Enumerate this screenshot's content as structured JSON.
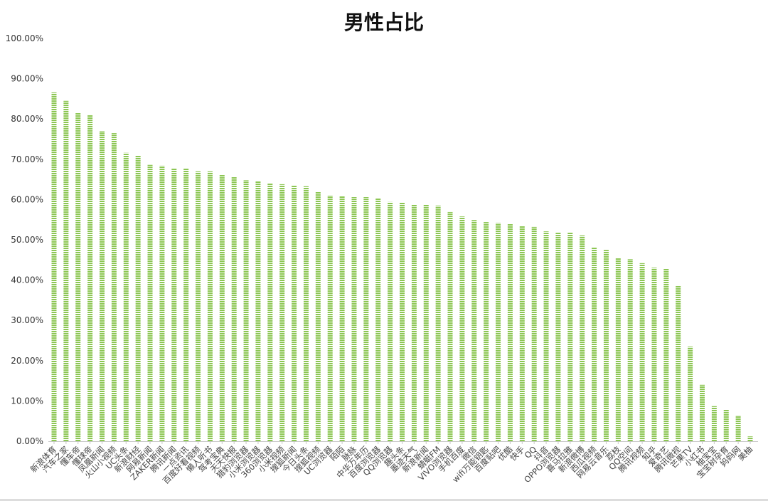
{
  "chart_data": {
    "type": "bar",
    "title": "男性占比",
    "xlabel": "",
    "ylabel": "",
    "ylim": [
      0,
      100
    ],
    "yticks": [
      "0.00%",
      "10.00%",
      "20.00%",
      "30.00%",
      "40.00%",
      "50.00%",
      "60.00%",
      "70.00%",
      "80.00%",
      "90.00%",
      "100.00%"
    ],
    "grid": false,
    "legend": "none",
    "bar_color": "#8cc653",
    "categories": [
      "新浪体育",
      "汽车之家",
      "懂车帝",
      "懂球帝",
      "凤凰新闻",
      "火山小视频",
      "UC头条",
      "新浪财经",
      "网易新闻",
      "ZAKER新闻",
      "腾讯新闻",
      "一点资讯",
      "百度好看视频",
      "懒人听书",
      "驾考宝典",
      "天天快报",
      "猎豹浏览器",
      "小米浏览器",
      "360浏览器",
      "小米视频",
      "搜狐新闻",
      "今日头条",
      "搜狐视频",
      "UC浏览器",
      "陌陌",
      "脉脉",
      "中华万年历",
      "百度浏览器",
      "QQ浏览器",
      "趣头条",
      "墨迹天气",
      "新浪新闻",
      "蜻蜓FM",
      "VIVO浏览器",
      "手机百度",
      "微信",
      "wifi万能钥匙",
      "百度贴吧",
      "优酷",
      "快手",
      "QQ",
      "抖音",
      "OPPO浏览器",
      "喜马拉雅",
      "新浪微博",
      "西瓜视频",
      "网易云音乐",
      "荔枝",
      "QQ空间",
      "腾讯视频",
      "知乎",
      "爱奇艺",
      "腾讯微视",
      "芒果TV",
      "小红书",
      "柚宝宝",
      "宝宝树孕育",
      "妈妈网",
      "美柚"
    ],
    "values": [
      86.6,
      84.5,
      81.6,
      81.1,
      77.0,
      76.5,
      71.6,
      71.0,
      68.6,
      68.4,
      67.7,
      67.7,
      67.0,
      67.0,
      66.1,
      65.7,
      64.8,
      64.5,
      64.1,
      63.8,
      63.6,
      63.3,
      62.0,
      61.0,
      60.8,
      60.6,
      60.6,
      60.4,
      59.4,
      59.2,
      58.8,
      58.8,
      58.5,
      56.9,
      55.8,
      54.9,
      54.4,
      54.2,
      53.9,
      53.5,
      53.2,
      52.1,
      51.9,
      51.8,
      51.1,
      48.1,
      47.5,
      45.4,
      45.2,
      44.2,
      43.1,
      42.8,
      38.7,
      23.5,
      14.0,
      8.7,
      7.8,
      6.4,
      1.2
    ]
  }
}
